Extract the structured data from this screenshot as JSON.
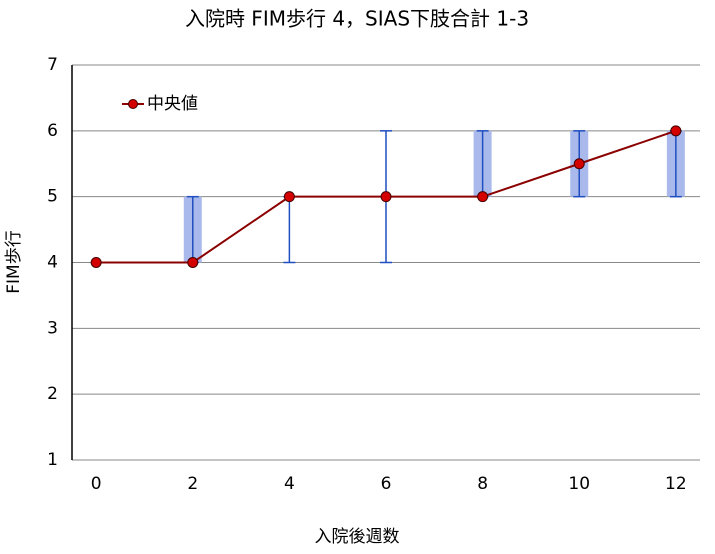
{
  "chart_data": {
    "type": "line",
    "title": "入院時 FIM歩行 4，SIAS下肢合計 1-3",
    "x_label": "入院後週数",
    "y_label": "FIM歩行",
    "x": [
      0,
      2,
      4,
      6,
      8,
      10,
      12
    ],
    "xlim": [
      -0.5,
      12.5
    ],
    "xticks": [
      0,
      2,
      4,
      6,
      8,
      10,
      12
    ],
    "ylim": [
      1,
      7
    ],
    "yticks": [
      1,
      2,
      3,
      4,
      5,
      6,
      7
    ],
    "grid": true,
    "legend": "upper left",
    "series": [
      {
        "name": "中央値",
        "color": "#8b0000",
        "marker_color": "#d40000",
        "values": [
          4,
          4,
          5,
          5,
          5,
          5.5,
          6
        ],
        "min": [
          null,
          4,
          4,
          4,
          5,
          5,
          5
        ],
        "max": [
          null,
          5,
          5,
          6,
          6,
          6,
          6
        ],
        "box_low": [
          null,
          4,
          null,
          null,
          5,
          5,
          5
        ],
        "box_high": [
          null,
          5,
          null,
          null,
          6,
          6,
          6
        ],
        "bar_color": "#1f4fc0",
        "box_color": "#a9b9ec"
      }
    ]
  }
}
